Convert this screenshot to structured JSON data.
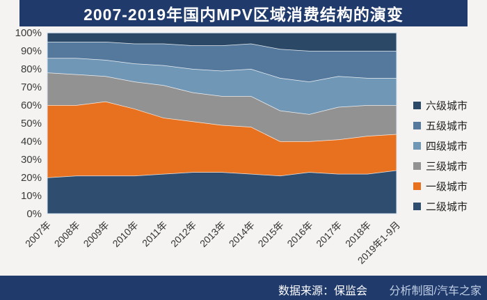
{
  "title": "2007-2019年国内MPV区域消费结构的演变",
  "footer": {
    "source": "数据来源：保监会",
    "watermark": "分析制图/汽车之家"
  },
  "colors": {
    "bar_bg": "#203a6b",
    "page_bg": "#f4f3f1",
    "plot_border": "#d5e3ef",
    "separator_line": "rgba(255,255,255,0.85)"
  },
  "legend": [
    {
      "label": "六级城市",
      "color": "#2b4966"
    },
    {
      "label": "五级城市",
      "color": "#55799d"
    },
    {
      "label": "四级城市",
      "color": "#7197b6"
    },
    {
      "label": "三级城市",
      "color": "#929292"
    },
    {
      "label": "一级城市",
      "color": "#e8711f"
    },
    {
      "label": "二级城市",
      "color": "#2f4d6e"
    }
  ],
  "chart_data": {
    "type": "area",
    "stacked": true,
    "unit": "%",
    "title": "2007-2019年国内MPV区域消费结构的演变",
    "categories": [
      "2007年",
      "2008年",
      "2009年",
      "2010年",
      "2011年",
      "2012年",
      "2013年",
      "2014年",
      "2015年",
      "2016年",
      "2017年",
      "2018年",
      "2019年1-9月"
    ],
    "stack_order": "bottom-to-top",
    "series": [
      {
        "name": "二级城市",
        "color": "#2f4d6e",
        "values": [
          20,
          21,
          21,
          21,
          22,
          23,
          23,
          22,
          21,
          23,
          22,
          22,
          24
        ]
      },
      {
        "name": "一级城市",
        "color": "#e8711f",
        "values": [
          40,
          39,
          41,
          37,
          31,
          28,
          26,
          26,
          19,
          17,
          19,
          21,
          20
        ]
      },
      {
        "name": "三级城市",
        "color": "#929292",
        "values": [
          18,
          17,
          14,
          15,
          18,
          16,
          16,
          17,
          17,
          15,
          18,
          17,
          16
        ]
      },
      {
        "name": "四级城市",
        "color": "#7197b6",
        "values": [
          8,
          9,
          9,
          10,
          11,
          13,
          14,
          15,
          18,
          18,
          17,
          15,
          15
        ]
      },
      {
        "name": "五级城市",
        "color": "#55799d",
        "values": [
          9,
          9,
          10,
          11,
          12,
          13,
          14,
          14,
          16,
          17,
          14,
          15,
          15
        ]
      },
      {
        "name": "六级城市",
        "color": "#2b4966",
        "values": [
          5,
          5,
          5,
          6,
          6,
          7,
          7,
          6,
          9,
          10,
          10,
          10,
          10
        ]
      }
    ],
    "ylim": [
      0,
      100
    ],
    "y_ticks": [
      "0%",
      "10%",
      "20%",
      "30%",
      "40%",
      "50%",
      "60%",
      "70%",
      "80%",
      "90%",
      "100%"
    ],
    "grid": false,
    "legend_position": "right"
  }
}
